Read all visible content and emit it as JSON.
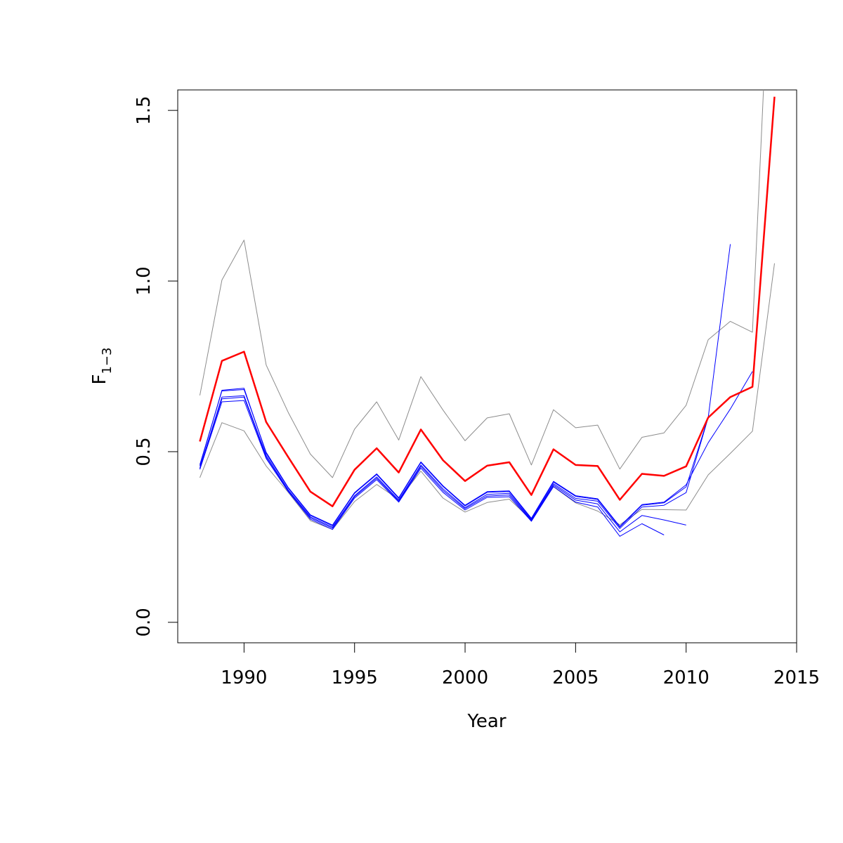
{
  "chart_data": {
    "type": "line",
    "xlabel": "Year",
    "ylabel_main": "F",
    "ylabel_sub": "1−3",
    "xlim": [
      1987,
      2015
    ],
    "ylim": [
      -0.06,
      1.56
    ],
    "x_ticks": [
      1990,
      1995,
      2000,
      2005,
      2010,
      2015
    ],
    "y_ticks": [
      0.0,
      0.5,
      1.0,
      1.5
    ],
    "x_tick_labels": [
      "1990",
      "1995",
      "2000",
      "2005",
      "2010",
      "2015"
    ],
    "y_tick_labels": [
      "0.0",
      "0.5",
      "1.0",
      "1.5"
    ],
    "grid": false,
    "colors": {
      "estimate": "#ff0000",
      "bounds": "#8c8c8c",
      "retro": "#0000ff"
    },
    "series": [
      {
        "role": "estimate",
        "x": [
          1988,
          1989,
          1990,
          1991,
          1992,
          1993,
          1994,
          1995,
          1996,
          1997,
          1998,
          1999,
          2000,
          2001,
          2002,
          2003,
          2004,
          2005,
          2006,
          2007,
          2008,
          2009,
          2010,
          2011,
          2012,
          2013,
          2014
        ],
        "y": [
          0.53,
          0.766,
          0.793,
          0.587,
          0.484,
          0.383,
          0.34,
          0.447,
          0.51,
          0.439,
          0.565,
          0.475,
          0.414,
          0.459,
          0.469,
          0.373,
          0.507,
          0.461,
          0.458,
          0.359,
          0.435,
          0.429,
          0.457,
          0.6,
          0.66,
          0.69,
          1.54
        ]
      },
      {
        "role": "upper",
        "x": [
          1988,
          1989,
          1990,
          1991,
          1992,
          1993,
          1994,
          1995,
          1996,
          1997,
          1998,
          1999,
          2000,
          2001,
          2002,
          2003,
          2004,
          2005,
          2006,
          2007,
          2008,
          2009,
          2010,
          2011,
          2012,
          2013,
          2013.5
        ],
        "y": [
          0.665,
          1.003,
          1.12,
          0.754,
          0.615,
          0.493,
          0.424,
          0.566,
          0.646,
          0.534,
          0.72,
          0.622,
          0.532,
          0.599,
          0.611,
          0.461,
          0.623,
          0.57,
          0.578,
          0.449,
          0.542,
          0.555,
          0.636,
          0.828,
          0.882,
          0.85,
          1.56
        ]
      },
      {
        "role": "lower",
        "x": [
          1988,
          1989,
          1990,
          1991,
          1992,
          1993,
          1994,
          1995,
          1996,
          1997,
          1998,
          1999,
          2000,
          2001,
          2002,
          2003,
          2004,
          2005,
          2006,
          2007,
          2008,
          2009,
          2010,
          2011,
          2012,
          2013,
          2014
        ],
        "y": [
          0.424,
          0.585,
          0.561,
          0.458,
          0.381,
          0.298,
          0.272,
          0.354,
          0.404,
          0.36,
          0.443,
          0.364,
          0.323,
          0.351,
          0.361,
          0.3,
          0.397,
          0.35,
          0.326,
          0.286,
          0.331,
          0.33,
          0.329,
          0.432,
          0.495,
          0.56,
          1.052
        ]
      },
      {
        "role": "retro",
        "x": [
          1988,
          1989,
          1990,
          1991,
          1992,
          1993,
          1994,
          1995,
          1996,
          1997,
          1998,
          1999,
          2000,
          2001,
          2002,
          2003,
          2004,
          2005,
          2006,
          2007,
          2008,
          2009,
          2010,
          2011,
          2012,
          2013
        ],
        "y": [
          0.462,
          0.678,
          0.682,
          0.498,
          0.395,
          0.315,
          0.285,
          0.38,
          0.435,
          0.365,
          0.47,
          0.4,
          0.343,
          0.383,
          0.385,
          0.305,
          0.413,
          0.371,
          0.362,
          0.281,
          0.345,
          0.352,
          0.403,
          0.526,
          0.625,
          0.735
        ]
      },
      {
        "role": "retro",
        "x": [
          1988,
          1989,
          1990,
          1991,
          1992,
          1993,
          1994,
          1995,
          1996,
          1997,
          1998,
          1999,
          2000,
          2001,
          2002,
          2003,
          2004,
          2005,
          2006,
          2007,
          2008,
          2009,
          2010,
          2011,
          2012
        ],
        "y": [
          0.458,
          0.68,
          0.686,
          0.495,
          0.393,
          0.313,
          0.283,
          0.378,
          0.433,
          0.363,
          0.468,
          0.398,
          0.341,
          0.381,
          0.383,
          0.303,
          0.411,
          0.369,
          0.36,
          0.279,
          0.343,
          0.35,
          0.397,
          0.6,
          1.108
        ]
      },
      {
        "role": "retro",
        "x": [
          1988,
          1989,
          1990,
          1991,
          1992,
          1993,
          1994,
          1995,
          1996,
          1997,
          1998,
          1999,
          2000,
          2001,
          2002,
          2003,
          2004,
          2005,
          2006,
          2007,
          2008,
          2009,
          2010,
          2011
        ],
        "y": [
          0.452,
          0.66,
          0.664,
          0.489,
          0.388,
          0.309,
          0.279,
          0.371,
          0.426,
          0.358,
          0.461,
          0.391,
          0.336,
          0.375,
          0.378,
          0.3,
          0.406,
          0.363,
          0.355,
          0.275,
          0.338,
          0.343,
          0.38,
          0.6
        ]
      },
      {
        "role": "retro",
        "x": [
          1988,
          1989,
          1990,
          1991,
          1992,
          1993,
          1994,
          1995,
          1996,
          1997,
          1998,
          1999,
          2000,
          2001,
          2002,
          2003,
          2004,
          2005,
          2006,
          2007,
          2008,
          2009,
          2010
        ],
        "y": [
          0.45,
          0.655,
          0.66,
          0.484,
          0.386,
          0.306,
          0.276,
          0.368,
          0.422,
          0.355,
          0.457,
          0.386,
          0.333,
          0.37,
          0.373,
          0.298,
          0.402,
          0.358,
          0.347,
          0.265,
          0.313,
          0.3,
          0.285
        ]
      },
      {
        "role": "retro",
        "x": [
          1988,
          1989,
          1990,
          1991,
          1992,
          1993,
          1994,
          1995,
          1996,
          1997,
          1998,
          1999,
          2000,
          2001,
          2002,
          2003,
          2004,
          2005,
          2006,
          2007,
          2008,
          2009
        ],
        "y": [
          0.448,
          0.646,
          0.65,
          0.48,
          0.383,
          0.302,
          0.272,
          0.364,
          0.418,
          0.352,
          0.452,
          0.381,
          0.329,
          0.366,
          0.368,
          0.296,
          0.398,
          0.352,
          0.338,
          0.252,
          0.289,
          0.256
        ]
      }
    ]
  }
}
